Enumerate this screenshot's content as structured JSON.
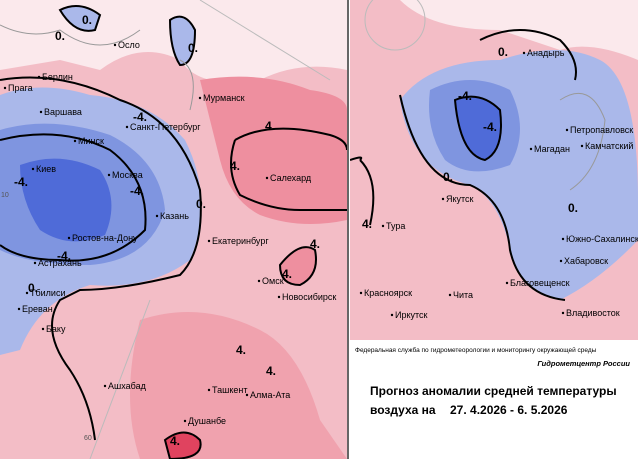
{
  "maps": {
    "left": {
      "cities": [
        "Осло",
        "Берлин",
        "Прага",
        "Варшава",
        "Мурманск",
        "Санкт-Петербург",
        "Минск",
        "Киев",
        "Москва",
        "Салехард",
        "Казань",
        "Ростов-на-Дону",
        "Екатеринбург",
        "Астрахань",
        "Тбилиси",
        "Ереван",
        "Баку",
        "Омск",
        "Новосибирск",
        "Ашхабад",
        "Ташкент",
        "Алма-Ата",
        "Душанбе"
      ],
      "contour_labels": [
        "0.",
        "0.",
        "0.",
        "-4.",
        "4.",
        "-4.",
        "-4.",
        "0.",
        "4.",
        "-4.",
        "4.",
        "4.",
        "0.",
        "4.",
        "4.",
        "4."
      ],
      "graticule_labels": [
        "10",
        "60"
      ]
    },
    "right": {
      "cities": [
        "Анадырь",
        "Петропавловск",
        "Камчатский",
        "Магадан",
        "Якутск",
        "Тура",
        "Южно-Сахалинск",
        "Хабаровск",
        "Благовещенск",
        "Красноярск",
        "Чита",
        "Иркутск",
        "Владивосток"
      ],
      "contour_labels": [
        "0.",
        "-4.",
        "-4.",
        "0.",
        "4.",
        "0."
      ]
    }
  },
  "footer": {
    "agency": "Федеральная служба по гидрометеорологии и мониторингу окружающей среды",
    "center": "Гидрометцентр России",
    "title_line1": "Прогноз аномалии средней температуры",
    "title_line2": "воздуха на",
    "period": "27. 4.2026 -  6. 5.2026"
  }
}
